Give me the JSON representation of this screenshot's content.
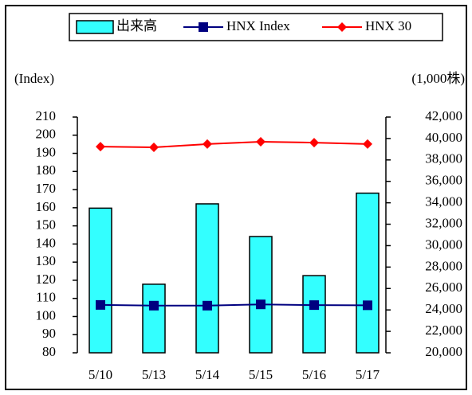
{
  "chart_data": {
    "type": "bar-line",
    "y_label": "(Index)",
    "y2_label": "(1,000株)",
    "categories": [
      "5/10",
      "5/13",
      "5/14",
      "5/15",
      "5/16",
      "5/17"
    ],
    "series": [
      {
        "name": "出来高",
        "type": "bar",
        "axis": "y2",
        "color": "#33ffff",
        "values": [
          33500,
          26400,
          33900,
          30850,
          27200,
          34900
        ]
      },
      {
        "name": "HNX Index",
        "type": "line",
        "marker": "square",
        "color": "#000080",
        "values": [
          106.4,
          106.0,
          106.0,
          106.7,
          106.3,
          106.2
        ]
      },
      {
        "name": "HNX 30",
        "type": "line",
        "marker": "diamond",
        "color": "#ff0000",
        "values": [
          193.7,
          193.3,
          195.1,
          196.4,
          195.9,
          195.1
        ]
      }
    ],
    "ylim": [
      80,
      210
    ],
    "yticks": [
      80,
      90,
      100,
      110,
      120,
      130,
      140,
      150,
      160,
      170,
      180,
      190,
      200,
      210
    ],
    "y2lim": [
      20000,
      42000
    ],
    "y2ticks": [
      {
        "value": 20000,
        "label": "20,000"
      },
      {
        "value": 22000,
        "label": "22,000"
      },
      {
        "value": 24000,
        "label": "24,000"
      },
      {
        "value": 26000,
        "label": "26,000"
      },
      {
        "value": 28000,
        "label": "28,000"
      },
      {
        "value": 30000,
        "label": "30,000"
      },
      {
        "value": 32000,
        "label": "32,000"
      },
      {
        "value": 34000,
        "label": "34,000"
      },
      {
        "value": 36000,
        "label": "36,000"
      },
      {
        "value": 38000,
        "label": "38,000"
      },
      {
        "value": 40000,
        "label": "40,000"
      },
      {
        "value": 42000,
        "label": "42,000"
      }
    ],
    "legend": "top"
  }
}
